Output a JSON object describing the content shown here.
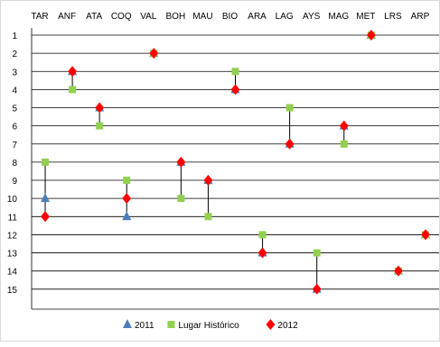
{
  "chart_data": {
    "type": "scatter",
    "categories": [
      "TAR",
      "ANF",
      "ATA",
      "COQ",
      "VAL",
      "BOH",
      "MAU",
      "BIO",
      "ARA",
      "LAG",
      "AYS",
      "MAG",
      "MET",
      "LRS",
      "ARP"
    ],
    "y_ticks": [
      "1",
      "2",
      "3",
      "4",
      "5",
      "6",
      "7",
      "8",
      "9",
      "10",
      "11",
      "12",
      "13",
      "14",
      "15"
    ],
    "ylim": [
      1,
      16
    ],
    "y_inverted": true,
    "x_axis_position": "top",
    "grid": true,
    "legend_position": "bottom",
    "range_lines": true,
    "series": [
      {
        "name": "2011",
        "marker": "triangle",
        "color": "#4a7ebb",
        "values": [
          10,
          3,
          5,
          11,
          2,
          8,
          9,
          4,
          13,
          7,
          15,
          6,
          1,
          14,
          12
        ]
      },
      {
        "name": "Lugar Histórico",
        "marker": "square",
        "color": "#92d050",
        "values": [
          8,
          4,
          6,
          9,
          2,
          10,
          11,
          3,
          12,
          5,
          13,
          7,
          1,
          14,
          12
        ]
      },
      {
        "name": "2012",
        "marker": "diamond",
        "color": "#ff0000",
        "values": [
          11,
          3,
          5,
          10,
          2,
          8,
          9,
          4,
          13,
          7,
          15,
          6,
          1,
          14,
          12
        ]
      }
    ]
  }
}
